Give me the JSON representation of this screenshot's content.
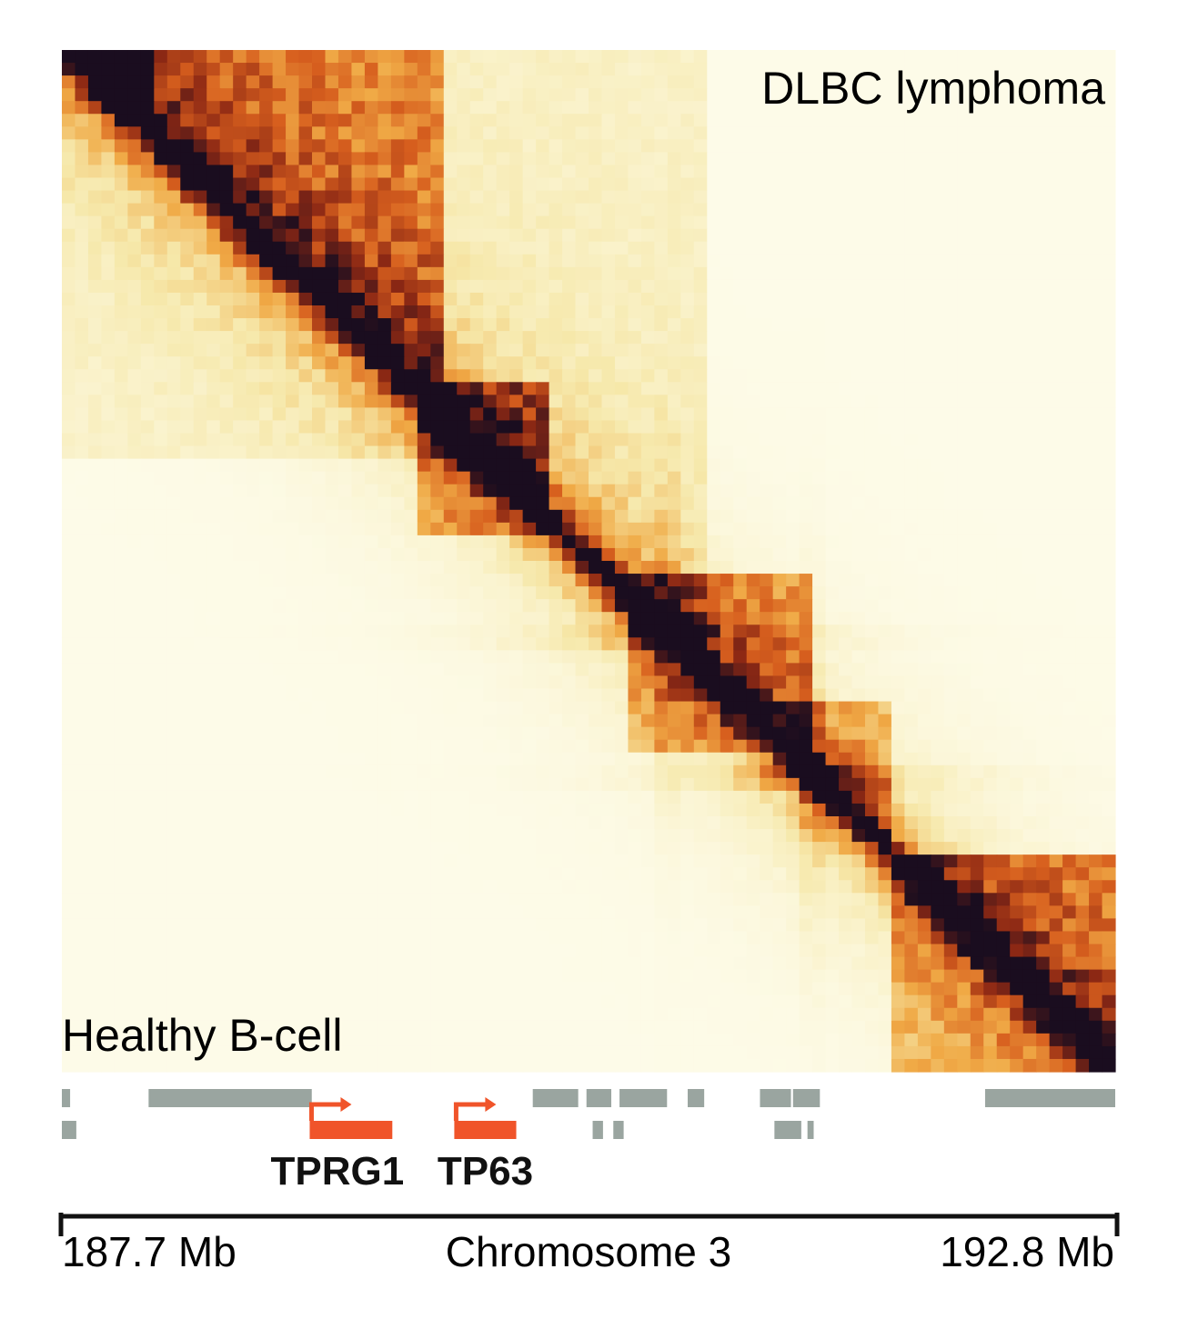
{
  "chart_data": {
    "type": "heatmap",
    "panels": {
      "upper": "DLBC lymphoma",
      "lower": "Healthy B-cell"
    },
    "axis": {
      "title": "Chromosome 3",
      "start_label": "187.7 Mb",
      "end_label": "192.8 Mb",
      "range_mb": [
        187.7,
        192.8
      ]
    },
    "domains_upper": [
      {
        "start": 187.7,
        "end": 190.8,
        "strength": 0.15
      },
      {
        "start": 187.7,
        "end": 189.5,
        "strength": 0.45
      },
      {
        "start": 187.7,
        "end": 188.1,
        "strength": 0.8
      },
      {
        "start": 189.3,
        "end": 190.0,
        "strength": 0.55
      },
      {
        "start": 190.3,
        "end": 191.3,
        "strength": 0.45
      },
      {
        "start": 190.9,
        "end": 191.7,
        "strength": 0.3
      },
      {
        "start": 191.7,
        "end": 192.8,
        "strength": 0.55
      }
    ],
    "domains_lower": [
      {
        "start": 187.7,
        "end": 189.7,
        "strength": 0.12
      },
      {
        "start": 189.4,
        "end": 190.1,
        "strength": 0.35
      },
      {
        "start": 190.4,
        "end": 191.2,
        "strength": 0.3
      },
      {
        "start": 191.7,
        "end": 192.8,
        "strength": 0.35
      }
    ],
    "hotspots": [
      190.6,
      191.3
    ],
    "genes_highlighted": [
      {
        "name": "TPRG1",
        "start": 188.9,
        "end": 189.3,
        "strand": "+"
      },
      {
        "name": "TP63",
        "start": 189.6,
        "end": 189.9,
        "strand": "+"
      }
    ],
    "genes_other_row1": [
      [
        187.7,
        187.74
      ],
      [
        188.12,
        188.91
      ],
      [
        189.98,
        190.2
      ],
      [
        190.24,
        190.36
      ],
      [
        190.4,
        190.63
      ],
      [
        190.73,
        190.81
      ],
      [
        191.08,
        191.23
      ],
      [
        191.24,
        191.37
      ],
      [
        192.17,
        192.8
      ]
    ],
    "genes_other_row2": [
      [
        187.7,
        187.77
      ],
      [
        190.27,
        190.32
      ],
      [
        190.37,
        190.42
      ],
      [
        191.15,
        191.28
      ],
      [
        191.31,
        191.34
      ]
    ],
    "colors": {
      "low": "#fdfbe8",
      "mid": "#f2a33a",
      "high": "#c2410c",
      "max": "#1a0d1f",
      "gene": "#9aa5a0",
      "highlight_gene": "#f0542a"
    }
  }
}
